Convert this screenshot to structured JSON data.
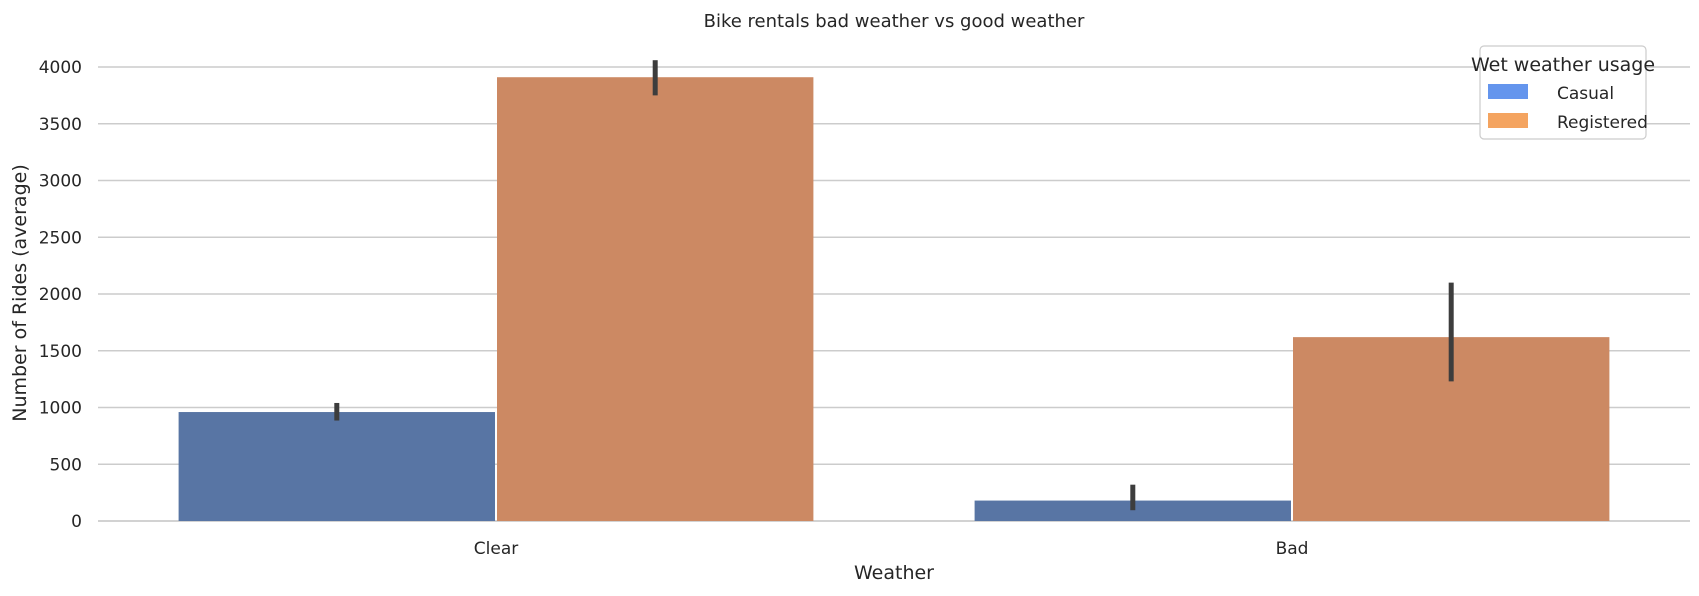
{
  "chart_data": {
    "type": "bar",
    "title": "Bike rentals bad weather vs good weather",
    "xlabel": "Weather",
    "ylabel": "Number of Rides (average)",
    "categories": [
      "Clear",
      "Bad"
    ],
    "series": [
      {
        "name": "Casual",
        "color": "#5875a4",
        "legend_color": "#6495ed",
        "values": [
          960,
          180
        ],
        "error_low": [
          885,
          95
        ],
        "error_high": [
          1040,
          320
        ]
      },
      {
        "name": "Registered",
        "color": "#cc8963",
        "legend_color": "#f4a460",
        "values": [
          3910,
          1620
        ],
        "error_low": [
          3750,
          1230
        ],
        "error_high": [
          4060,
          2100
        ]
      }
    ],
    "ylim": [
      0,
      4000
    ],
    "yticks": [
      0,
      500,
      1000,
      1500,
      2000,
      2500,
      3000,
      3500,
      4000
    ],
    "grid": true,
    "legend_title": "Wet weather usage",
    "legend_position": "top-right"
  }
}
